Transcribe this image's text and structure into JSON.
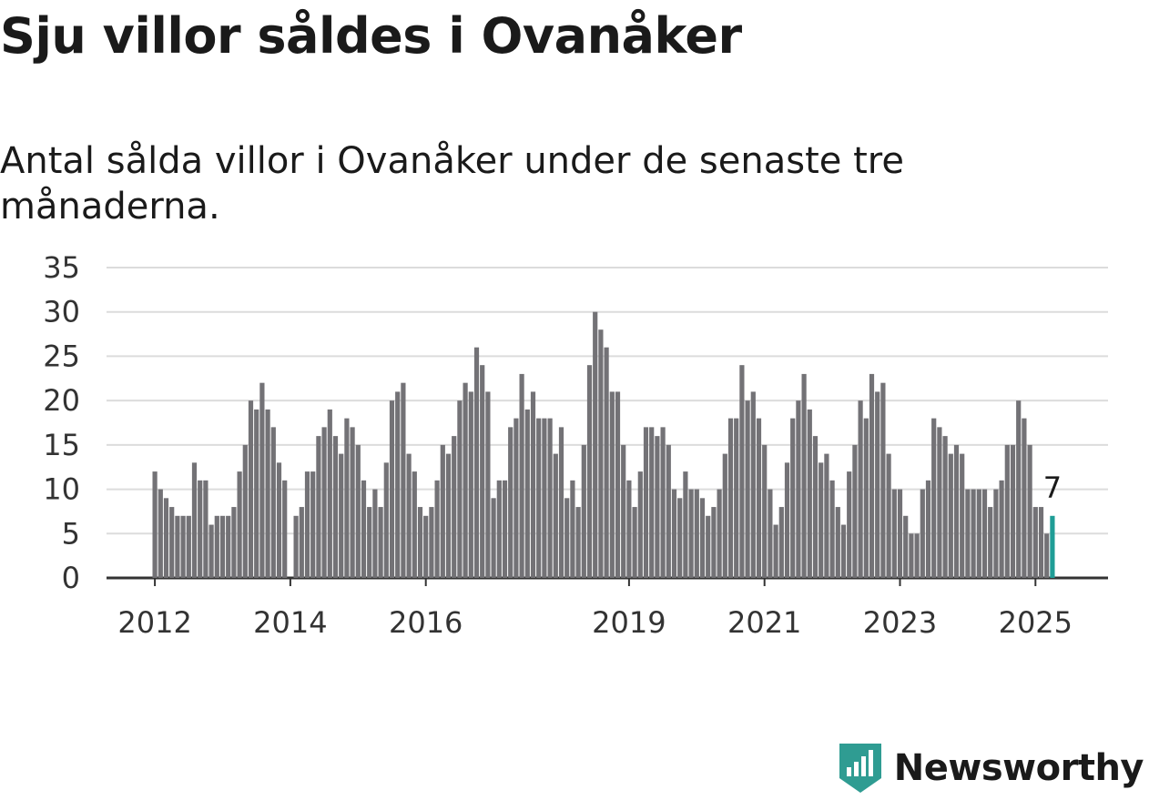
{
  "title": "Sju villor såldes i Ovanåker",
  "subtitle": "Antal sålda villor i Ovanåker under de senaste tre månaderna.",
  "colors": {
    "bar": "#737276",
    "highlight": "#1f9d96",
    "grid": "#dcdcdc",
    "axis": "#333333",
    "brand": "#2f9c92"
  },
  "brand": {
    "name": "Newsworthy",
    "icon": "newsworthy-logo-icon"
  },
  "chart_data": {
    "type": "bar",
    "start": "2012-01",
    "ylim": [
      0,
      35
    ],
    "yticks": [
      0,
      5,
      10,
      15,
      20,
      25,
      30,
      35
    ],
    "xticks": [
      "2012",
      "2014",
      "2016",
      "2019",
      "2021",
      "2023",
      "2025"
    ],
    "highlight_label": "7",
    "grid": true,
    "values": [
      12,
      10,
      9,
      8,
      7,
      7,
      7,
      13,
      11,
      11,
      6,
      7,
      7,
      7,
      8,
      12,
      15,
      20,
      19,
      22,
      19,
      17,
      13,
      11,
      0,
      7,
      8,
      12,
      12,
      16,
      17,
      19,
      16,
      14,
      18,
      17,
      15,
      11,
      8,
      10,
      8,
      13,
      20,
      21,
      22,
      14,
      12,
      8,
      7,
      8,
      11,
      15,
      14,
      16,
      20,
      22,
      21,
      26,
      24,
      21,
      9,
      11,
      11,
      17,
      18,
      23,
      19,
      21,
      18,
      18,
      18,
      14,
      17,
      9,
      11,
      8,
      15,
      24,
      30,
      28,
      26,
      21,
      21,
      15,
      11,
      8,
      12,
      17,
      17,
      16,
      17,
      15,
      10,
      9,
      12,
      10,
      10,
      9,
      7,
      8,
      10,
      14,
      18,
      18,
      24,
      20,
      21,
      18,
      15,
      10,
      6,
      8,
      13,
      18,
      20,
      23,
      19,
      16,
      13,
      14,
      11,
      8,
      6,
      12,
      15,
      20,
      18,
      23,
      21,
      22,
      14,
      10,
      10,
      7,
      5,
      5,
      10,
      11,
      18,
      17,
      16,
      14,
      15,
      14,
      10,
      10,
      10,
      10,
      8,
      10,
      11,
      15,
      15,
      20,
      18,
      15,
      8,
      8,
      5,
      7
    ]
  }
}
